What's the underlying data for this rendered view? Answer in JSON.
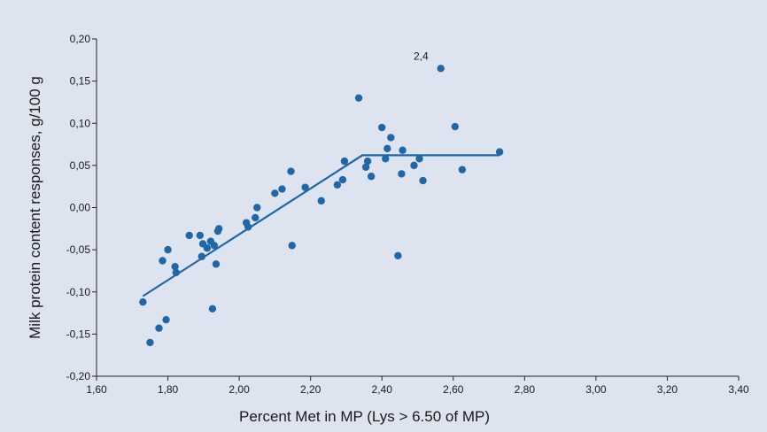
{
  "chart_data": {
    "type": "scatter",
    "xlabel": "Percent Met in MP (Lys > 6.50 of MP)",
    "ylabel": "Milk protein content responses, g/100 g",
    "xlim": [
      1.6,
      3.4
    ],
    "ylim": [
      -0.2,
      0.2
    ],
    "x_ticks": [
      "1,60",
      "1,80",
      "2,00",
      "2,20",
      "2,40",
      "2,60",
      "2,80",
      "3,00",
      "3,20",
      "3,40"
    ],
    "y_ticks": [
      "0,20",
      "0,15",
      "0,10",
      "0,05",
      "0,00",
      "-0,05",
      "-0,10",
      "-0,15",
      "-0,20"
    ],
    "grid": false,
    "colors": {
      "marker": "#1f67a6",
      "line": "#1f67a6",
      "background": "#dde3ef"
    },
    "points": [
      [
        1.73,
        -0.112
      ],
      [
        1.75,
        -0.16
      ],
      [
        1.775,
        -0.143
      ],
      [
        1.785,
        -0.063
      ],
      [
        1.795,
        -0.133
      ],
      [
        1.8,
        -0.05
      ],
      [
        1.82,
        -0.07
      ],
      [
        1.823,
        -0.077
      ],
      [
        1.86,
        -0.033
      ],
      [
        1.89,
        -0.033
      ],
      [
        1.895,
        -0.058
      ],
      [
        1.898,
        -0.043
      ],
      [
        1.91,
        -0.048
      ],
      [
        1.92,
        -0.04
      ],
      [
        1.925,
        -0.12
      ],
      [
        1.93,
        -0.045
      ],
      [
        1.935,
        -0.067
      ],
      [
        1.94,
        -0.028
      ],
      [
        1.943,
        -0.025
      ],
      [
        2.02,
        -0.018
      ],
      [
        2.025,
        -0.023
      ],
      [
        2.045,
        -0.012
      ],
      [
        2.05,
        0.0
      ],
      [
        2.1,
        0.017
      ],
      [
        2.12,
        0.022
      ],
      [
        2.145,
        0.043
      ],
      [
        2.148,
        -0.045
      ],
      [
        2.185,
        0.024
      ],
      [
        2.23,
        0.008
      ],
      [
        2.275,
        0.027
      ],
      [
        2.29,
        0.033
      ],
      [
        2.295,
        0.055
      ],
      [
        2.335,
        0.13
      ],
      [
        2.355,
        0.048
      ],
      [
        2.36,
        0.055
      ],
      [
        2.37,
        0.037
      ],
      [
        2.4,
        0.095
      ],
      [
        2.41,
        0.058
      ],
      [
        2.415,
        0.07
      ],
      [
        2.425,
        0.083
      ],
      [
        2.445,
        -0.057
      ],
      [
        2.455,
        0.04
      ],
      [
        2.458,
        0.068
      ],
      [
        2.49,
        0.05
      ],
      [
        2.505,
        0.058
      ],
      [
        2.515,
        0.032
      ],
      [
        2.565,
        0.165
      ],
      [
        2.605,
        0.096
      ],
      [
        2.625,
        0.045
      ],
      [
        2.73,
        0.066
      ]
    ],
    "fit_line": [
      [
        1.73,
        -0.105
      ],
      [
        2.345,
        0.062
      ],
      [
        2.73,
        0.062
      ]
    ],
    "annotations": [
      {
        "text": "2,4",
        "x": 2.565,
        "y": 0.165
      }
    ]
  }
}
